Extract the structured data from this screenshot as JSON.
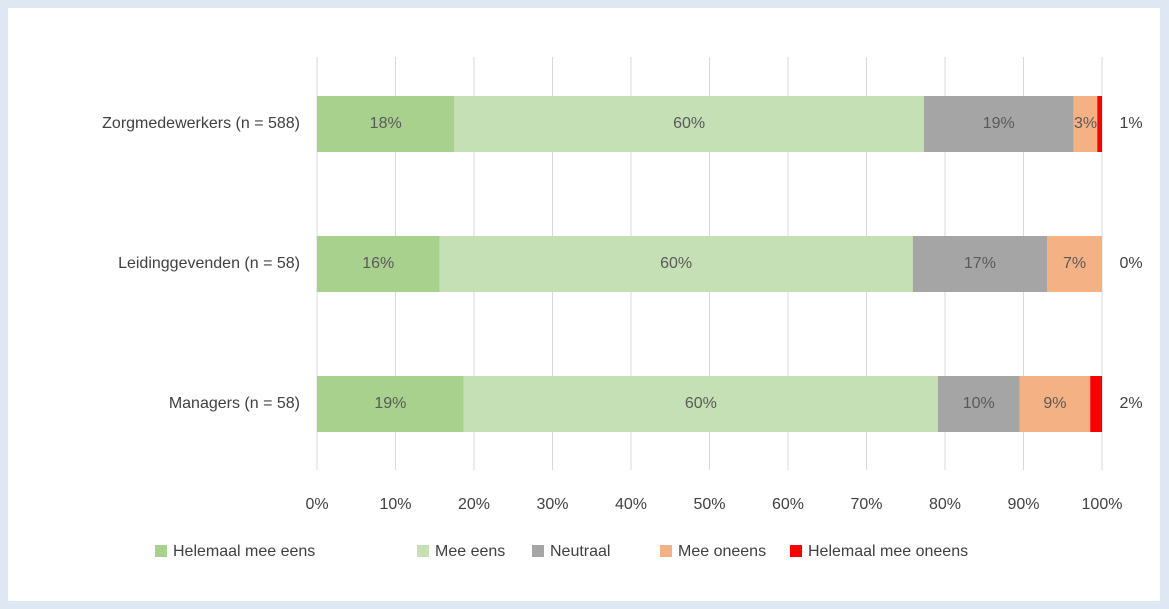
{
  "chart_data": {
    "type": "bar",
    "orientation": "horizontal",
    "stacked": true,
    "categories": [
      "Zorgmedewerkers (n = 588)",
      "Leidinggevenden (n = 58)",
      "Managers (n = 58)"
    ],
    "series": [
      {
        "name": "Helemaal mee eens",
        "color": "#a9d18e",
        "values": [
          17.5,
          15.6,
          18.7
        ],
        "value_labels": [
          "18%",
          "16%",
          "19%"
        ]
      },
      {
        "name": "Mee eens",
        "color": "#c5e0b4",
        "values": [
          59.8,
          60.3,
          60.4
        ],
        "value_labels": [
          "60%",
          "60%",
          "60%"
        ]
      },
      {
        "name": "Neutraal",
        "color": "#a5a5a5",
        "values": [
          19.1,
          17.1,
          10.4
        ],
        "value_labels": [
          "19%",
          "17%",
          "10%"
        ]
      },
      {
        "name": "Mee oneens",
        "color": "#f4b183",
        "values": [
          3.0,
          7.0,
          9.0
        ],
        "value_labels": [
          "3%",
          "7%",
          "9%"
        ]
      },
      {
        "name": "Helemaal mee oneens",
        "color": "#ff0000",
        "values": [
          0.6,
          0,
          1.5
        ],
        "value_labels": [
          "1%",
          "0%",
          "2%"
        ]
      }
    ],
    "xlim": [
      0,
      100
    ],
    "xticks": [
      {
        "value": 0,
        "label": "0%"
      },
      {
        "value": 10,
        "label": "10%"
      },
      {
        "value": 20,
        "label": "20%"
      },
      {
        "value": 30,
        "label": "30%"
      },
      {
        "value": 40,
        "label": "40%"
      },
      {
        "value": 50,
        "label": "50%"
      },
      {
        "value": 60,
        "label": "60%"
      },
      {
        "value": 70,
        "label": "70%"
      },
      {
        "value": 80,
        "label": "80%"
      },
      {
        "value": 90,
        "label": "90%"
      },
      {
        "value": 100,
        "label": "100%"
      }
    ],
    "grid": true,
    "legend": "bottom"
  }
}
